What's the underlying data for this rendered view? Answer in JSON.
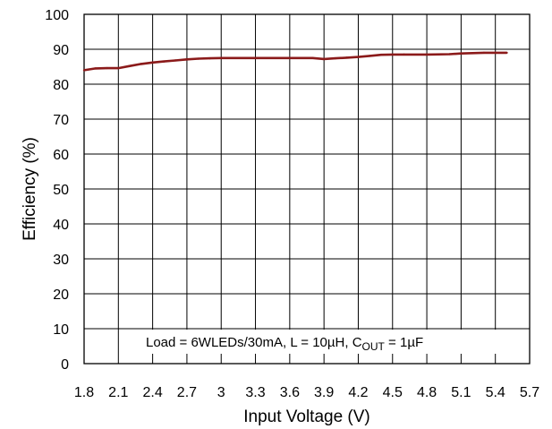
{
  "chart_data": {
    "type": "line",
    "xlabel": "Input Voltage (V)",
    "ylabel": "Efficiency (%)",
    "xlim": [
      1.8,
      5.7
    ],
    "ylim": [
      0,
      100
    ],
    "x_ticks": [
      "1.8",
      "2.1",
      "2.4",
      "2.7",
      "3",
      "3.3",
      "3.6",
      "3.9",
      "4.2",
      "4.5",
      "4.8",
      "5.1",
      "5.4",
      "5.7"
    ],
    "y_ticks": [
      "0",
      "10",
      "20",
      "30",
      "40",
      "50",
      "60",
      "70",
      "80",
      "90",
      "100"
    ],
    "grid": true,
    "annotation": {
      "prefix": "Load = 6WLEDs/30mA, L = 10µH, C",
      "subscript": "OUT",
      "suffix": " = 1µF"
    },
    "series": [
      {
        "color": "#8b1a1a",
        "x": [
          1.8,
          1.9,
          2.0,
          2.1,
          2.2,
          2.3,
          2.4,
          2.5,
          2.6,
          2.7,
          2.8,
          2.9,
          3.0,
          3.2,
          3.4,
          3.6,
          3.8,
          3.9,
          4.0,
          4.1,
          4.2,
          4.3,
          4.4,
          4.5,
          4.6,
          4.8,
          5.0,
          5.1,
          5.2,
          5.3,
          5.5
        ],
        "y": [
          84.0,
          84.5,
          84.6,
          84.6,
          85.2,
          85.8,
          86.2,
          86.5,
          86.8,
          87.1,
          87.3,
          87.4,
          87.5,
          87.5,
          87.5,
          87.5,
          87.5,
          87.2,
          87.4,
          87.6,
          87.8,
          88.1,
          88.4,
          88.5,
          88.5,
          88.5,
          88.6,
          88.8,
          88.9,
          89.0,
          89.0
        ]
      }
    ]
  }
}
